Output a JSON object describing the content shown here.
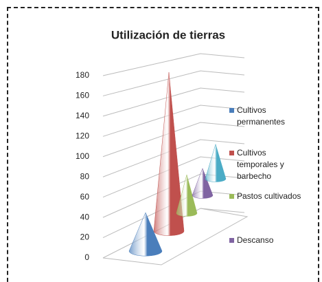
{
  "chart_data": {
    "type": "cone3d",
    "title": "Utilización de tierras",
    "series": [
      {
        "name": "Cultivos permanentes",
        "color": "#4a7ebb",
        "values": [
          40
        ]
      },
      {
        "name": "Cultivos temporales y barbecho",
        "color": "#c0504d",
        "values": [
          165
        ]
      },
      {
        "name": "Pastos cultivados",
        "color": "#9bbb59",
        "values": [
          40
        ]
      },
      {
        "name": "Descanso",
        "color": "#8064a2",
        "values": [
          28
        ]
      },
      {
        "name": null,
        "color": "#4bacc6",
        "values": [
          36
        ]
      }
    ],
    "ylim": [
      0,
      180
    ],
    "yticks": [
      0,
      20,
      40,
      60,
      80,
      100,
      120,
      140,
      160,
      180
    ],
    "grid": true,
    "legend": "right"
  }
}
